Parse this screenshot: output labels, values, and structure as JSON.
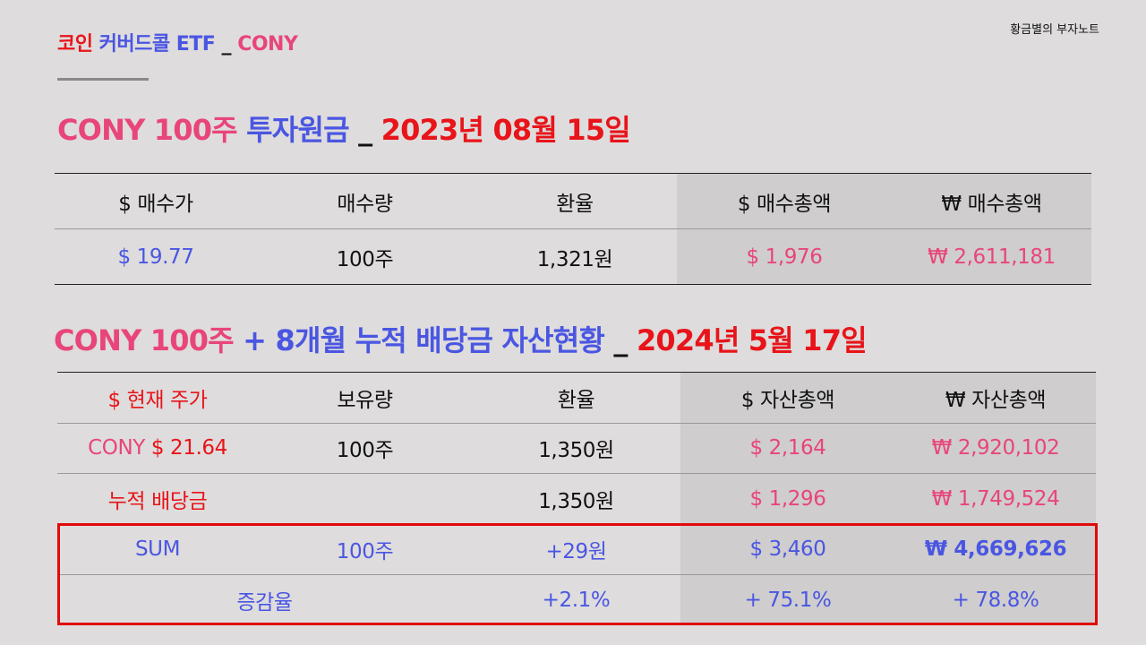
{
  "header": {
    "title_coin": "코인",
    "title_mid": "커버드콜 ETF",
    "title_sep": "_",
    "title_ticker": "CONY",
    "brand": "황금별의 부자노트"
  },
  "section1": {
    "title_ticker": "CONY 100주",
    "title_principal": "투자원금",
    "title_sep": "_",
    "title_date": "2023년 08월 15일",
    "headers": [
      "$ 매수가",
      "매수량",
      "환율",
      "$ 매수총액",
      "₩ 매수총액"
    ],
    "row": [
      "$ 19.77",
      "100주",
      "1,321원",
      "$ 1,976",
      "₩ 2,611,181"
    ]
  },
  "section2": {
    "title_ticker": "CONY 100주",
    "title_plus": "+ 8개월 누적 배당금 자산현황",
    "title_sep": "_",
    "title_date": "2024년 5월 17일",
    "headers": [
      "$ 현재 주가",
      "보유량",
      "환율",
      "$ 자산총액",
      "₩ 자산총액"
    ],
    "row_price": {
      "label_ticker": "CONY",
      "label_price": "$ 21.64",
      "qty": "100주",
      "rate": "1,350원",
      "usd_total": "$ 2,164",
      "krw_total": "₩ 2,920,102"
    },
    "row_dividend": {
      "label": "누적 배당금",
      "qty": "",
      "rate": "1,350원",
      "usd_total": "$ 1,296",
      "krw_total": "₩ 1,749,524"
    },
    "row_sum": {
      "label": "SUM",
      "qty": "100주",
      "rate": "+29원",
      "usd_total": "$ 3,460",
      "krw_total": "₩ 4,669,626"
    },
    "row_change": {
      "label": "증감율",
      "rate": "+2.1%",
      "usd_total": "+ 75.1%",
      "krw_total": "+ 78.8%"
    }
  },
  "colors": {
    "background": "#dedcdc",
    "red": "#e8141a",
    "blue": "#4a56e2",
    "pink": "#e8457a",
    "shade": "#cfcdcd",
    "highlight_box": "#e00a0a"
  }
}
